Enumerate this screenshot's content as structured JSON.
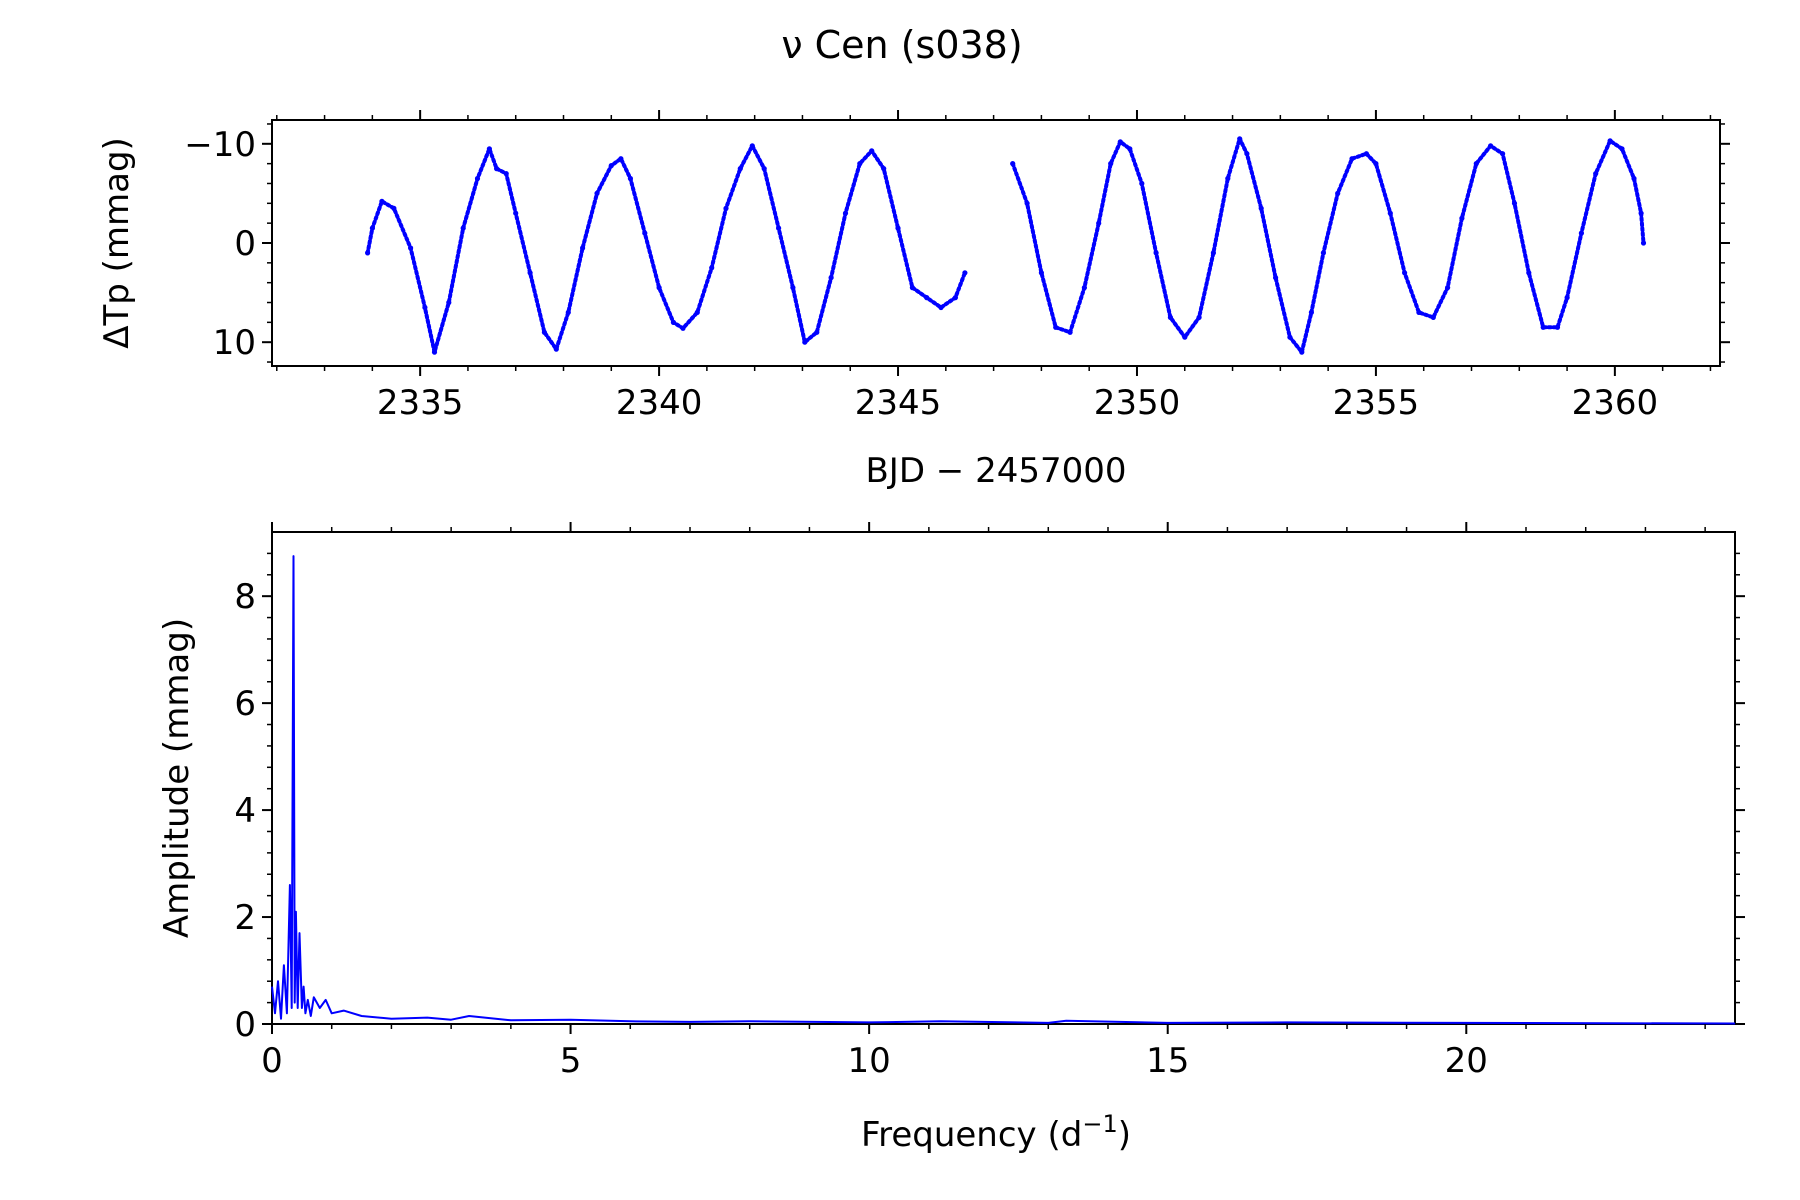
{
  "figure": {
    "title": "ν Cen  (s038)"
  },
  "chart_data": [
    {
      "type": "scatter",
      "panel": "light-curve",
      "xlabel": "BJD − 2457000",
      "ylabel": "ΔTp (mmag)",
      "xlim": [
        2331.9,
        2362.2
      ],
      "ylim": [
        12.4,
        -12.4
      ],
      "y_inverted": true,
      "xticks": [
        2335,
        2340,
        2345,
        2350,
        2355,
        2360
      ],
      "xtick_labels": [
        "2335",
        "2340",
        "2345",
        "2350",
        "2355",
        "2360"
      ],
      "yticks": [
        -10,
        0,
        10
      ],
      "ytick_labels": [
        "−10",
        "0",
        "10"
      ],
      "grid": false,
      "color": "#0000ff",
      "series": [
        {
          "x": [
            2333.9,
            2334.0,
            2334.2,
            2334.45,
            2334.8,
            2335.1,
            2335.3,
            2335.6,
            2335.9,
            2336.2,
            2336.45,
            2336.6,
            2336.8,
            2337.0,
            2337.3,
            2337.6,
            2337.85,
            2338.1,
            2338.4,
            2338.7,
            2339.0,
            2339.2,
            2339.4,
            2339.7,
            2340.0,
            2340.3,
            2340.5,
            2340.8,
            2341.1,
            2341.4,
            2341.7,
            2341.95,
            2342.2,
            2342.5,
            2342.8,
            2343.05,
            2343.3,
            2343.6,
            2343.9,
            2344.2,
            2344.45,
            2344.7,
            2345.0,
            2345.3,
            2345.6,
            2345.9,
            2346.2,
            2346.4
          ],
          "y": [
            1.0,
            -1.5,
            -4.2,
            -3.5,
            0.5,
            6.5,
            11.0,
            6.0,
            -1.5,
            -6.5,
            -9.5,
            -7.5,
            -7.0,
            -3.0,
            3.0,
            9.0,
            10.7,
            7.0,
            0.5,
            -5.0,
            -7.8,
            -8.5,
            -6.5,
            -1.0,
            4.5,
            8.0,
            8.6,
            7.0,
            2.5,
            -3.5,
            -7.5,
            -9.8,
            -7.5,
            -1.5,
            4.5,
            10.0,
            9.0,
            3.5,
            -3.0,
            -8.0,
            -9.3,
            -7.5,
            -1.5,
            4.5,
            5.5,
            6.5,
            5.5,
            3.0
          ]
        },
        {
          "x": [
            2347.4,
            2347.7,
            2348.0,
            2348.3,
            2348.6,
            2348.9,
            2349.2,
            2349.45,
            2349.65,
            2349.85,
            2350.1,
            2350.4,
            2350.7,
            2351.0,
            2351.3,
            2351.6,
            2351.9,
            2352.15,
            2352.3,
            2352.6,
            2352.9,
            2353.2,
            2353.45,
            2353.65,
            2353.9,
            2354.2,
            2354.5,
            2354.8,
            2355.0,
            2355.3,
            2355.6,
            2355.9,
            2356.2,
            2356.5,
            2356.8,
            2357.1,
            2357.4,
            2357.65,
            2357.9,
            2358.2,
            2358.5,
            2358.8,
            2359.0,
            2359.3,
            2359.6,
            2359.9,
            2360.15,
            2360.4,
            2360.55,
            2360.6
          ],
          "y": [
            -8.0,
            -4.0,
            3.0,
            8.5,
            9.0,
            4.5,
            -2.0,
            -8.0,
            -10.2,
            -9.5,
            -6.0,
            1.0,
            7.5,
            9.5,
            7.5,
            1.0,
            -6.5,
            -10.5,
            -9.0,
            -3.5,
            3.5,
            9.5,
            11.0,
            7.0,
            1.0,
            -5.0,
            -8.5,
            -9.0,
            -8.0,
            -3.0,
            3.0,
            7.0,
            7.5,
            4.5,
            -2.5,
            -8.0,
            -9.8,
            -9.0,
            -4.0,
            3.0,
            8.5,
            8.5,
            5.5,
            -1.0,
            -7.0,
            -10.3,
            -9.5,
            -6.5,
            -3.0,
            0.0
          ]
        }
      ]
    },
    {
      "type": "line",
      "panel": "amplitude-spectrum",
      "xlabel": "Frequency (d−1)",
      "xlabel_main": "Frequency (d",
      "xlabel_sup": "−1",
      "xlabel_close": ")",
      "ylabel": "Amplitude (mmag)",
      "xlim": [
        0,
        24.5
      ],
      "ylim": [
        0,
        9.2
      ],
      "xticks": [
        0,
        5,
        10,
        15,
        20
      ],
      "xtick_labels": [
        "0",
        "5",
        "10",
        "15",
        "20"
      ],
      "yticks": [
        0,
        2,
        4,
        6,
        8
      ],
      "ytick_labels": [
        "0",
        "2",
        "4",
        "6",
        "8"
      ],
      "grid": false,
      "color": "#0000ff",
      "x": [
        0.0,
        0.05,
        0.1,
        0.15,
        0.2,
        0.25,
        0.3,
        0.33,
        0.36,
        0.38,
        0.4,
        0.43,
        0.46,
        0.5,
        0.53,
        0.56,
        0.6,
        0.65,
        0.7,
        0.8,
        0.9,
        1.0,
        1.2,
        1.5,
        2.0,
        2.6,
        3.0,
        3.3,
        4.0,
        5.0,
        6.0,
        7.0,
        8.0,
        10.0,
        11.2,
        13.0,
        13.3,
        15.0,
        17.0,
        20.0,
        24.5
      ],
      "y": [
        0.7,
        0.2,
        0.8,
        0.1,
        1.1,
        0.2,
        2.6,
        0.3,
        8.75,
        0.4,
        2.1,
        0.3,
        1.7,
        0.3,
        0.7,
        0.2,
        0.45,
        0.15,
        0.5,
        0.3,
        0.45,
        0.2,
        0.25,
        0.15,
        0.1,
        0.12,
        0.08,
        0.15,
        0.07,
        0.08,
        0.05,
        0.04,
        0.05,
        0.03,
        0.05,
        0.02,
        0.06,
        0.02,
        0.03,
        0.02,
        0.01
      ]
    }
  ]
}
